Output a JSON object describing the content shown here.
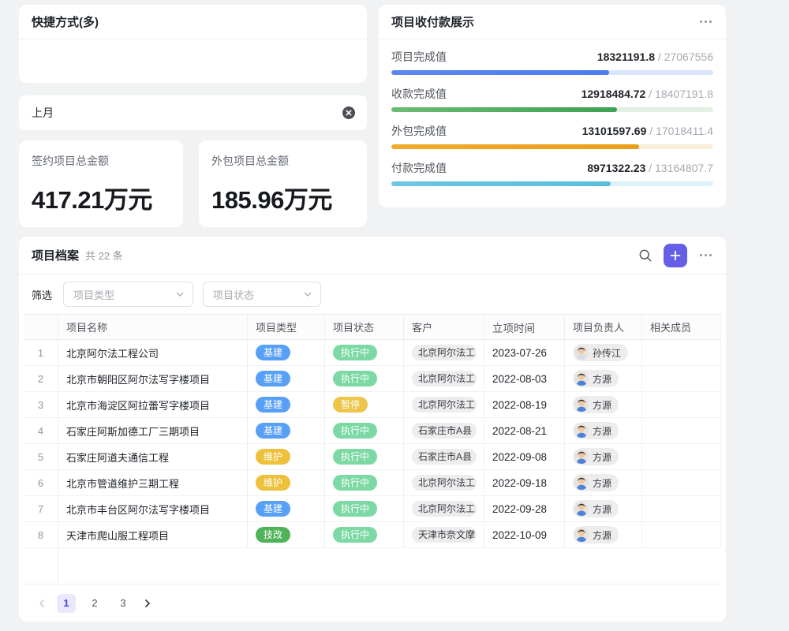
{
  "colors": {
    "accent": "#655ee6",
    "page_active_bg": "#eae8fc",
    "page_active_text": "#4d43d8",
    "type_pills": {
      "基建": "#57a0f6",
      "维护": "#edc13c",
      "技改": "#4fb357"
    },
    "status_pills": {
      "执行中": "#7cd9a4",
      "暂停": "#edc54a"
    }
  },
  "shortcuts": {
    "title": "快捷方式(多)"
  },
  "quick_filter": {
    "value": "上月",
    "clear_icon": "circle-x-icon"
  },
  "stats": [
    {
      "label": "签约项目总金额",
      "value": "417.21万元"
    },
    {
      "label": "外包项目总金额",
      "value": "185.96万元"
    }
  ],
  "payments": {
    "title": "项目收付款展示",
    "separator": "/",
    "rows": [
      {
        "label": "项目完成值",
        "current": "18321191.8",
        "total": "27067556",
        "current_num": 18321191.8,
        "total_num": 27067556,
        "color": "#4d7bf0",
        "color2": "#5c87f2",
        "track": "#dbe5fb"
      },
      {
        "label": "收款完成值",
        "current": "12918484.72",
        "total": "18407191.8",
        "current_num": 12918484.72,
        "total_num": 18407191.8,
        "color": "#3da153",
        "color2": "#6cbb72",
        "track": "#e1f0e3"
      },
      {
        "label": "外包完成值",
        "current": "13101597.69",
        "total": "17018411.4",
        "current_num": 13101597.69,
        "total_num": 17018411.4,
        "color": "#ec9e16",
        "color2": "#f0ab2e",
        "track": "#faeedb"
      },
      {
        "label": "付款完成值",
        "current": "8971322.23",
        "total": "13164807.7",
        "current_num": 8971322.23,
        "total_num": 13164807.7,
        "color": "#58bede",
        "color2": "#6cc7e2",
        "track": "#dff2f9"
      }
    ]
  },
  "archive": {
    "title": "项目档案",
    "count": "共 22 条",
    "filter_label": "筛选",
    "filters": [
      {
        "placeholder": "项目类型"
      },
      {
        "placeholder": "项目状态"
      }
    ],
    "columns": [
      "项目名称",
      "项目类型",
      "项目状态",
      "客户",
      "立项时间",
      "项目负责人",
      "相关成员"
    ],
    "rows": [
      {
        "num": "1",
        "name": "北京阿尔法工程公司",
        "type": "基建",
        "status": "执行中",
        "customer": "北京阿尔法工",
        "date": "2023-07-26",
        "owner": "孙传江",
        "shirt": "#d8dde2"
      },
      {
        "num": "2",
        "name": "北京市朝阳区阿尔法写字楼项目",
        "type": "基建",
        "status": "执行中",
        "customer": "北京阿尔法工",
        "date": "2022-08-03",
        "owner": "方源",
        "shirt": "#4d82d8"
      },
      {
        "num": "3",
        "name": "北京市海淀区阿拉蕾写字楼项目",
        "type": "基建",
        "status": "暂停",
        "customer": "北京阿尔法工",
        "date": "2022-08-19",
        "owner": "方源",
        "shirt": "#4d82d8"
      },
      {
        "num": "4",
        "name": "石家庄阿斯加德工厂三期项目",
        "type": "基建",
        "status": "执行中",
        "customer": "石家庄市A县",
        "date": "2022-08-21",
        "owner": "方源",
        "shirt": "#4d82d8"
      },
      {
        "num": "5",
        "name": "石家庄阿道夫通信工程",
        "type": "维护",
        "status": "执行中",
        "customer": "石家庄市A县",
        "date": "2022-09-08",
        "owner": "方源",
        "shirt": "#4d82d8"
      },
      {
        "num": "6",
        "name": "北京市管道维护三期工程",
        "type": "维护",
        "status": "执行中",
        "customer": "北京阿尔法工",
        "date": "2022-09-18",
        "owner": "方源",
        "shirt": "#4d82d8"
      },
      {
        "num": "7",
        "name": "北京市丰台区阿尔法写字楼项目",
        "type": "基建",
        "status": "执行中",
        "customer": "北京阿尔法工",
        "date": "2022-09-28",
        "owner": "方源",
        "shirt": "#4d82d8"
      },
      {
        "num": "8",
        "name": "天津市爬山服工程项目",
        "type": "技改",
        "status": "执行中",
        "customer": "天津市奈文摩",
        "date": "2022-10-09",
        "owner": "方源",
        "shirt": "#4d82d8"
      }
    ],
    "pagination": {
      "pages": [
        "1",
        "2",
        "3"
      ],
      "active": "1"
    }
  }
}
